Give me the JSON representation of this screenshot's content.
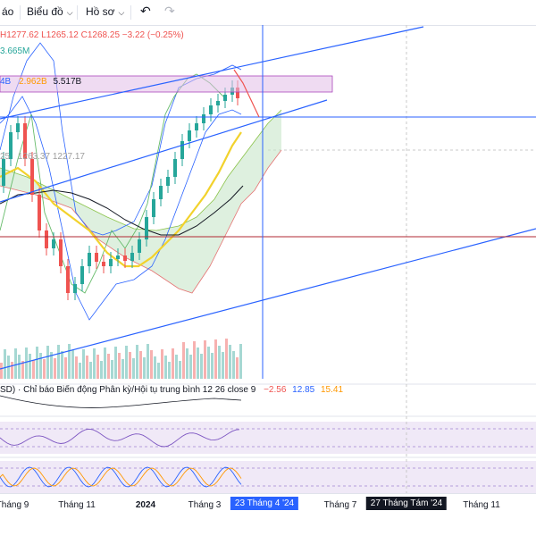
{
  "toolbar": {
    "left_label": "áo",
    "chart_type_label": "Biểu đồ",
    "profile_label": "Hồ sơ",
    "undo_icon": "undo-icon",
    "redo_icon": "redo-icon"
  },
  "legend": {
    "ohlc": "H1277.62  L1265.12  C1268.25  −3.22 (−0.25%)",
    "volume": "3.665M",
    "vol_ma_prefix": "4B",
    "vol_ma_value1": "2.962B",
    "vol_ma_value2": "5.517B",
    "ichimoku_prefix": "25",
    "ichimoku_values": "1263.37  1227.17",
    "macd_name": "SD) · Chỉ báo Biến động Phân kỳ/Hội tụ trung bình  12 26 close 9",
    "macd_v1": "−2.56",
    "macd_v2": "12.85",
    "macd_v3": "15.41"
  },
  "colors": {
    "up": "#26a69a",
    "down": "#ef5350",
    "trendline": "#2962ff",
    "hline": "#b22833",
    "sma_yellow": "#f2d22c",
    "sma_black": "#131722",
    "ichimoku_green": "#8bc34a",
    "ichimoku_red": "#e57373",
    "rsi": "#7e57c2",
    "stoch_k": "#2962ff",
    "stoch_d": "#ff9800",
    "macd_v1": "#ef5350",
    "macd_v2": "#2962ff",
    "macd_v3": "#ff9800"
  },
  "x_axis": {
    "labels": [
      "Tháng 9",
      "Tháng 11",
      "2024",
      "Tháng 3",
      "Tháng 7",
      "Tháng 11"
    ],
    "badge_blue": "23 Tháng 4 '24",
    "badge_dark": "27 Tháng Tám '24"
  },
  "chart_data": {
    "type": "candlestick",
    "last_bar": {
      "high": 1277.62,
      "low": 1265.12,
      "close": 1268.25,
      "change": -3.22,
      "change_pct": -0.25
    },
    "trend": "rising channel",
    "indicators": [
      "Volume",
      "Ichimoku Cloud",
      "Bollinger Bands",
      "SMA",
      "MACD 12 26 close 9",
      "RSI",
      "Stochastic"
    ],
    "macd_values": [
      -2.56,
      12.85,
      15.41
    ]
  }
}
